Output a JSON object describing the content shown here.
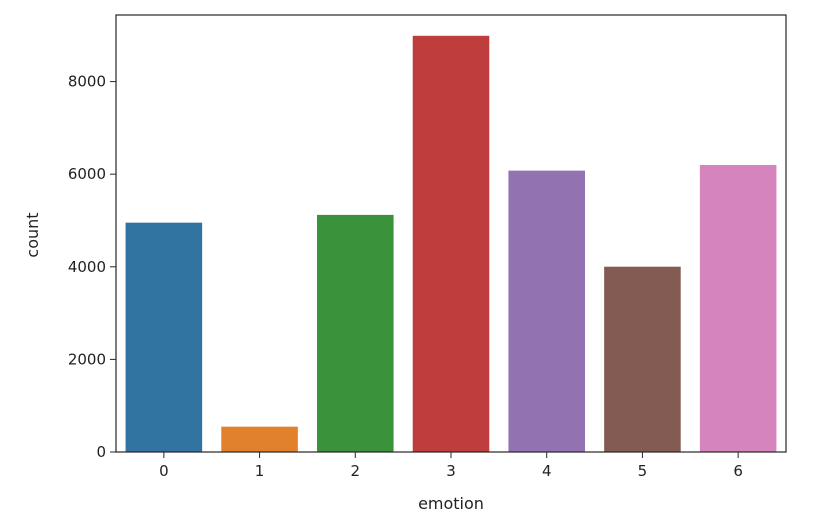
{
  "chart_data": {
    "type": "bar",
    "title": "",
    "xlabel": "emotion",
    "ylabel": "count",
    "categories": [
      "0",
      "1",
      "2",
      "3",
      "4",
      "5",
      "6"
    ],
    "values": [
      4953,
      547,
      5121,
      8989,
      6077,
      4002,
      6198
    ],
    "colors": [
      "#3274a1",
      "#e1812c",
      "#3a923a",
      "#c03d3e",
      "#9372b2",
      "#845b53",
      "#d684bd"
    ],
    "ylim": [
      0,
      9438
    ],
    "yticks": [
      0,
      2000,
      4000,
      6000,
      8000
    ],
    "grid": false,
    "legend": "none"
  }
}
